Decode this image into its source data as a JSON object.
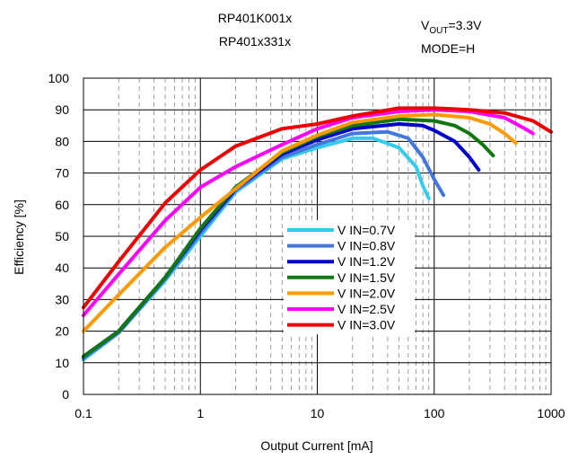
{
  "chart_data": {
    "type": "line",
    "title": [
      "RP401K001x",
      "RP401x331x"
    ],
    "conditions": {
      "vout_prefix": "V",
      "vout_sub": "OUT",
      "vout_value": "=3.3V",
      "mode": "MODE=H"
    },
    "xlabel": "Output Current [mA]",
    "ylabel": "Efficiency [%]",
    "xscale": "log",
    "xlim": [
      0.1,
      1000
    ],
    "ylim": [
      0,
      100
    ],
    "xticks": [
      0.1,
      1,
      10,
      100,
      1000
    ],
    "xtick_labels": [
      "0.1",
      "1",
      "10",
      "100",
      "1000"
    ],
    "yticks": [
      0,
      10,
      20,
      30,
      40,
      50,
      60,
      70,
      80,
      90,
      100
    ],
    "ytick_labels": [
      "0",
      "10",
      "20",
      "30",
      "40",
      "50",
      "60",
      "70",
      "80",
      "90",
      "100"
    ],
    "grid": true,
    "legend_position": "center",
    "series": [
      {
        "name": "V IN=0.7V",
        "color": "#33CCEE",
        "x": [
          0.1,
          0.2,
          0.5,
          1,
          2,
          5,
          10,
          20,
          30,
          50,
          70,
          80,
          90
        ],
        "y": [
          11,
          19.5,
          36,
          50,
          64,
          74.5,
          78,
          81,
          81,
          78,
          72,
          66,
          62
        ]
      },
      {
        "name": "V IN=0.8V",
        "color": "#4477DD",
        "x": [
          0.1,
          0.2,
          0.5,
          1,
          2,
          5,
          10,
          20,
          40,
          60,
          80,
          100,
          120
        ],
        "y": [
          11.5,
          19.5,
          36.5,
          51,
          64.5,
          75,
          79,
          82.5,
          83,
          81,
          75,
          68,
          63
        ]
      },
      {
        "name": "V IN=1.2V",
        "color": "#0000CC",
        "x": [
          0.1,
          0.2,
          0.5,
          1,
          2,
          5,
          10,
          20,
          50,
          80,
          100,
          150,
          200,
          240
        ],
        "y": [
          12,
          20,
          37,
          52,
          65,
          76,
          80.5,
          84,
          85.5,
          85,
          83.5,
          80,
          75,
          71
        ]
      },
      {
        "name": "V IN=1.5V",
        "color": "#117711",
        "x": [
          0.1,
          0.2,
          0.5,
          1,
          2,
          5,
          10,
          20,
          50,
          100,
          150,
          200,
          260,
          320
        ],
        "y": [
          12,
          20,
          37,
          52.5,
          65.5,
          76.5,
          81.5,
          85,
          87,
          86.5,
          85,
          82.5,
          79,
          75.5
        ]
      },
      {
        "name": "V IN=2.0V",
        "color": "#FF9900",
        "x": [
          0.1,
          0.2,
          0.5,
          1,
          2,
          5,
          10,
          20,
          50,
          100,
          200,
          300,
          400,
          500
        ],
        "y": [
          20,
          31.5,
          46.5,
          56,
          65,
          77,
          82,
          86,
          88,
          88.5,
          87.5,
          85.5,
          82.5,
          79.5
        ]
      },
      {
        "name": "V IN=2.5V",
        "color": "#FF00FF",
        "x": [
          0.1,
          0.2,
          0.5,
          1,
          2,
          5,
          10,
          20,
          50,
          100,
          200,
          400,
          600,
          700
        ],
        "y": [
          25,
          38,
          55,
          65.5,
          72,
          79,
          84,
          87.5,
          89.5,
          90,
          89.5,
          87.5,
          84,
          82.5
        ]
      },
      {
        "name": "V IN=3.0V",
        "color": "#EE0000",
        "x": [
          0.1,
          0.2,
          0.5,
          1,
          2,
          5,
          10,
          20,
          50,
          100,
          200,
          400,
          700,
          1000
        ],
        "y": [
          27.5,
          42,
          60.5,
          71,
          78.5,
          84,
          85.5,
          88,
          90.5,
          90.5,
          90,
          89,
          86.5,
          83
        ]
      }
    ]
  }
}
